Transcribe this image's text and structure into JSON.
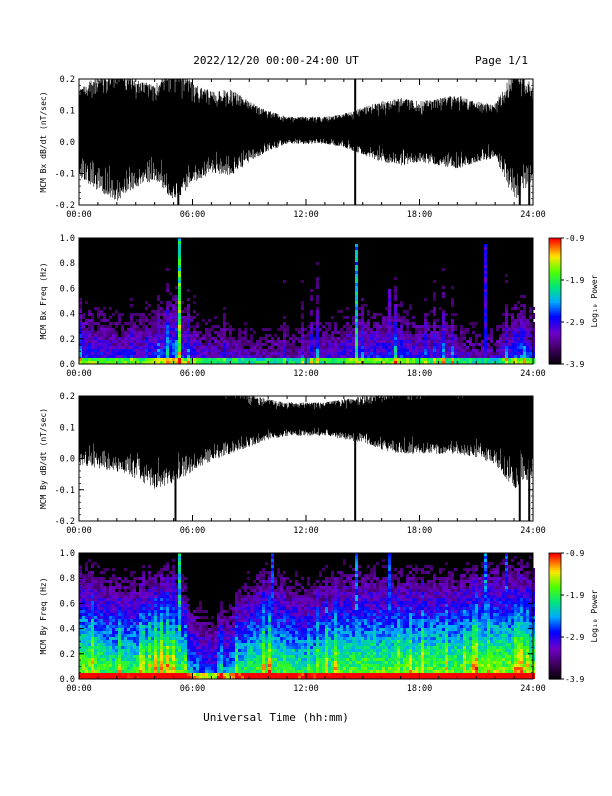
{
  "header": {
    "title": "2022/12/20  00:00-24:00 UT",
    "page": "Page 1/1"
  },
  "footer": {
    "xlabel": "Universal Time (hh:mm)"
  },
  "colorbar": {
    "label": "Log₁₀ Power",
    "ticks": [
      "-0.9",
      "-1.9",
      "-2.9",
      "-3.9"
    ]
  },
  "chart_data": [
    {
      "type": "line",
      "ylabel": "MCM Bx dB/dt (nT/sec)",
      "x_ticks": [
        "00:00",
        "06:00",
        "12:00",
        "18:00",
        "24:00"
      ],
      "y_ticks": [
        "0.2",
        "0.1",
        "0.0",
        "-0.1",
        "-0.2"
      ],
      "xlim": [
        0,
        24
      ],
      "ylim": [
        -0.2,
        0.2
      ],
      "baseline": 0.04,
      "envelope": [
        [
          0,
          0.13
        ],
        [
          1,
          0.17
        ],
        [
          2,
          0.2
        ],
        [
          3,
          0.16
        ],
        [
          4,
          0.14
        ],
        [
          5,
          0.2
        ],
        [
          6,
          0.15
        ],
        [
          7,
          0.12
        ],
        [
          8,
          0.13
        ],
        [
          9,
          0.09
        ],
        [
          10,
          0.06
        ],
        [
          11,
          0.04
        ],
        [
          12,
          0.04
        ],
        [
          13,
          0.04
        ],
        [
          14,
          0.05
        ],
        [
          15,
          0.07
        ],
        [
          16,
          0.09
        ],
        [
          17,
          0.1
        ],
        [
          18,
          0.09
        ],
        [
          19,
          0.1
        ],
        [
          20,
          0.11
        ],
        [
          21,
          0.09
        ],
        [
          22,
          0.08
        ],
        [
          23,
          0.2
        ],
        [
          24,
          0.14
        ]
      ],
      "spikes": [
        {
          "x": 5.25,
          "y": -0.2
        },
        {
          "x": 14.6,
          "y": -0.2
        },
        {
          "x": 14.6,
          "y": 0.2
        },
        {
          "x": 23.3,
          "y": -0.2
        },
        {
          "x": 23.5,
          "y": 0.2
        },
        {
          "x": 23.8,
          "y": -0.2
        }
      ]
    },
    {
      "type": "heatmap",
      "ylabel": "MCM Bx Freq (Hz)",
      "x_ticks": [
        "00:00",
        "06:00",
        "12:00",
        "18:00",
        "24:00"
      ],
      "y_ticks": [
        "1.0",
        "0.8",
        "0.6",
        "0.4",
        "0.2",
        "0.0"
      ],
      "xlim": [
        0,
        24
      ],
      "ylim": [
        0,
        1
      ],
      "zlim": [
        -3.9,
        -0.9
      ],
      "activity": [
        [
          0,
          0.45
        ],
        [
          1,
          0.45
        ],
        [
          2,
          0.4
        ],
        [
          3,
          0.4
        ],
        [
          4,
          0.45
        ],
        [
          5,
          0.55
        ],
        [
          6,
          0.4
        ],
        [
          7,
          0.35
        ],
        [
          8,
          0.35
        ],
        [
          9,
          0.3
        ],
        [
          10,
          0.3
        ],
        [
          11,
          0.3
        ],
        [
          12,
          0.3
        ],
        [
          13,
          0.35
        ],
        [
          14,
          0.4
        ],
        [
          15,
          0.45
        ],
        [
          16,
          0.45
        ],
        [
          17,
          0.45
        ],
        [
          18,
          0.4
        ],
        [
          19,
          0.4
        ],
        [
          20,
          0.35
        ],
        [
          21,
          0.3
        ],
        [
          22,
          0.3
        ],
        [
          23,
          0.5
        ],
        [
          24,
          0.45
        ]
      ],
      "streaks": [
        {
          "x": 1.9,
          "top": 0.95,
          "strength": 0.5
        },
        {
          "x": 5.25,
          "top": 1.0,
          "strength": 0.9
        },
        {
          "x": 14.6,
          "top": 0.95,
          "strength": 0.7
        },
        {
          "x": 16.4,
          "top": 0.6,
          "strength": 0.4
        },
        {
          "x": 19.5,
          "top": 0.4,
          "strength": 0.4
        },
        {
          "x": 21.5,
          "top": 0.95,
          "strength": 0.5
        }
      ]
    },
    {
      "type": "line",
      "ylabel": "MCM By dB/dt (nT/sec)",
      "x_ticks": [
        "00:00",
        "06:00",
        "12:00",
        "18:00",
        "24:00"
      ],
      "y_ticks": [
        "0.2",
        "0.1",
        "0.0",
        "-0.1",
        "-0.2"
      ],
      "xlim": [
        0,
        24
      ],
      "ylim": [
        -0.2,
        0.2
      ],
      "baseline": 0.13,
      "envelope": [
        [
          0,
          0.13
        ],
        [
          1,
          0.14
        ],
        [
          2,
          0.15
        ],
        [
          3,
          0.17
        ],
        [
          4,
          0.2
        ],
        [
          5,
          0.18
        ],
        [
          6,
          0.15
        ],
        [
          7,
          0.12
        ],
        [
          8,
          0.1
        ],
        [
          9,
          0.08
        ],
        [
          10,
          0.06
        ],
        [
          11,
          0.05
        ],
        [
          12,
          0.05
        ],
        [
          13,
          0.05
        ],
        [
          14,
          0.06
        ],
        [
          15,
          0.07
        ],
        [
          16,
          0.09
        ],
        [
          17,
          0.1
        ],
        [
          18,
          0.1
        ],
        [
          19,
          0.1
        ],
        [
          20,
          0.1
        ],
        [
          21,
          0.11
        ],
        [
          22,
          0.13
        ],
        [
          23,
          0.2
        ],
        [
          24,
          0.16
        ]
      ],
      "spikes": [
        {
          "x": 5.1,
          "y": -0.2
        },
        {
          "x": 14.6,
          "y": -0.2
        },
        {
          "x": 23.3,
          "y": -0.2
        },
        {
          "x": 23.8,
          "y": -0.2
        }
      ]
    },
    {
      "type": "heatmap",
      "ylabel": "MCM By Freq (Hz)",
      "x_ticks": [
        "00:00",
        "06:00",
        "12:00",
        "18:00",
        "24:00"
      ],
      "y_ticks": [
        "1.0",
        "0.8",
        "0.6",
        "0.4",
        "0.2",
        "0.0"
      ],
      "xlim": [
        0,
        24
      ],
      "ylim": [
        0,
        1
      ],
      "zlim": [
        -3.9,
        -0.9
      ],
      "activity": [
        [
          0,
          0.9
        ],
        [
          1,
          0.85
        ],
        [
          2,
          0.8
        ],
        [
          3,
          0.8
        ],
        [
          4,
          0.85
        ],
        [
          5,
          0.9
        ],
        [
          6,
          0.6
        ],
        [
          7,
          0.5
        ],
        [
          8,
          0.6
        ],
        [
          9,
          0.8
        ],
        [
          10,
          0.85
        ],
        [
          11,
          0.8
        ],
        [
          12,
          0.75
        ],
        [
          13,
          0.8
        ],
        [
          14,
          0.85
        ],
        [
          15,
          0.85
        ],
        [
          16,
          0.85
        ],
        [
          17,
          0.85
        ],
        [
          18,
          0.85
        ],
        [
          19,
          0.85
        ],
        [
          20,
          0.85
        ],
        [
          21,
          0.9
        ],
        [
          22,
          0.9
        ],
        [
          23,
          0.9
        ],
        [
          24,
          0.9
        ]
      ],
      "streaks": [
        {
          "x": 1.9,
          "top": 1.0,
          "strength": 0.7
        },
        {
          "x": 5.25,
          "top": 1.0,
          "strength": 0.9
        },
        {
          "x": 10.2,
          "top": 1.0,
          "strength": 0.6
        },
        {
          "x": 14.6,
          "top": 1.0,
          "strength": 0.7
        },
        {
          "x": 16.4,
          "top": 1.0,
          "strength": 0.6
        },
        {
          "x": 21.5,
          "top": 1.0,
          "strength": 0.7
        },
        {
          "x": 22.6,
          "top": 1.0,
          "strength": 0.6
        }
      ]
    }
  ]
}
